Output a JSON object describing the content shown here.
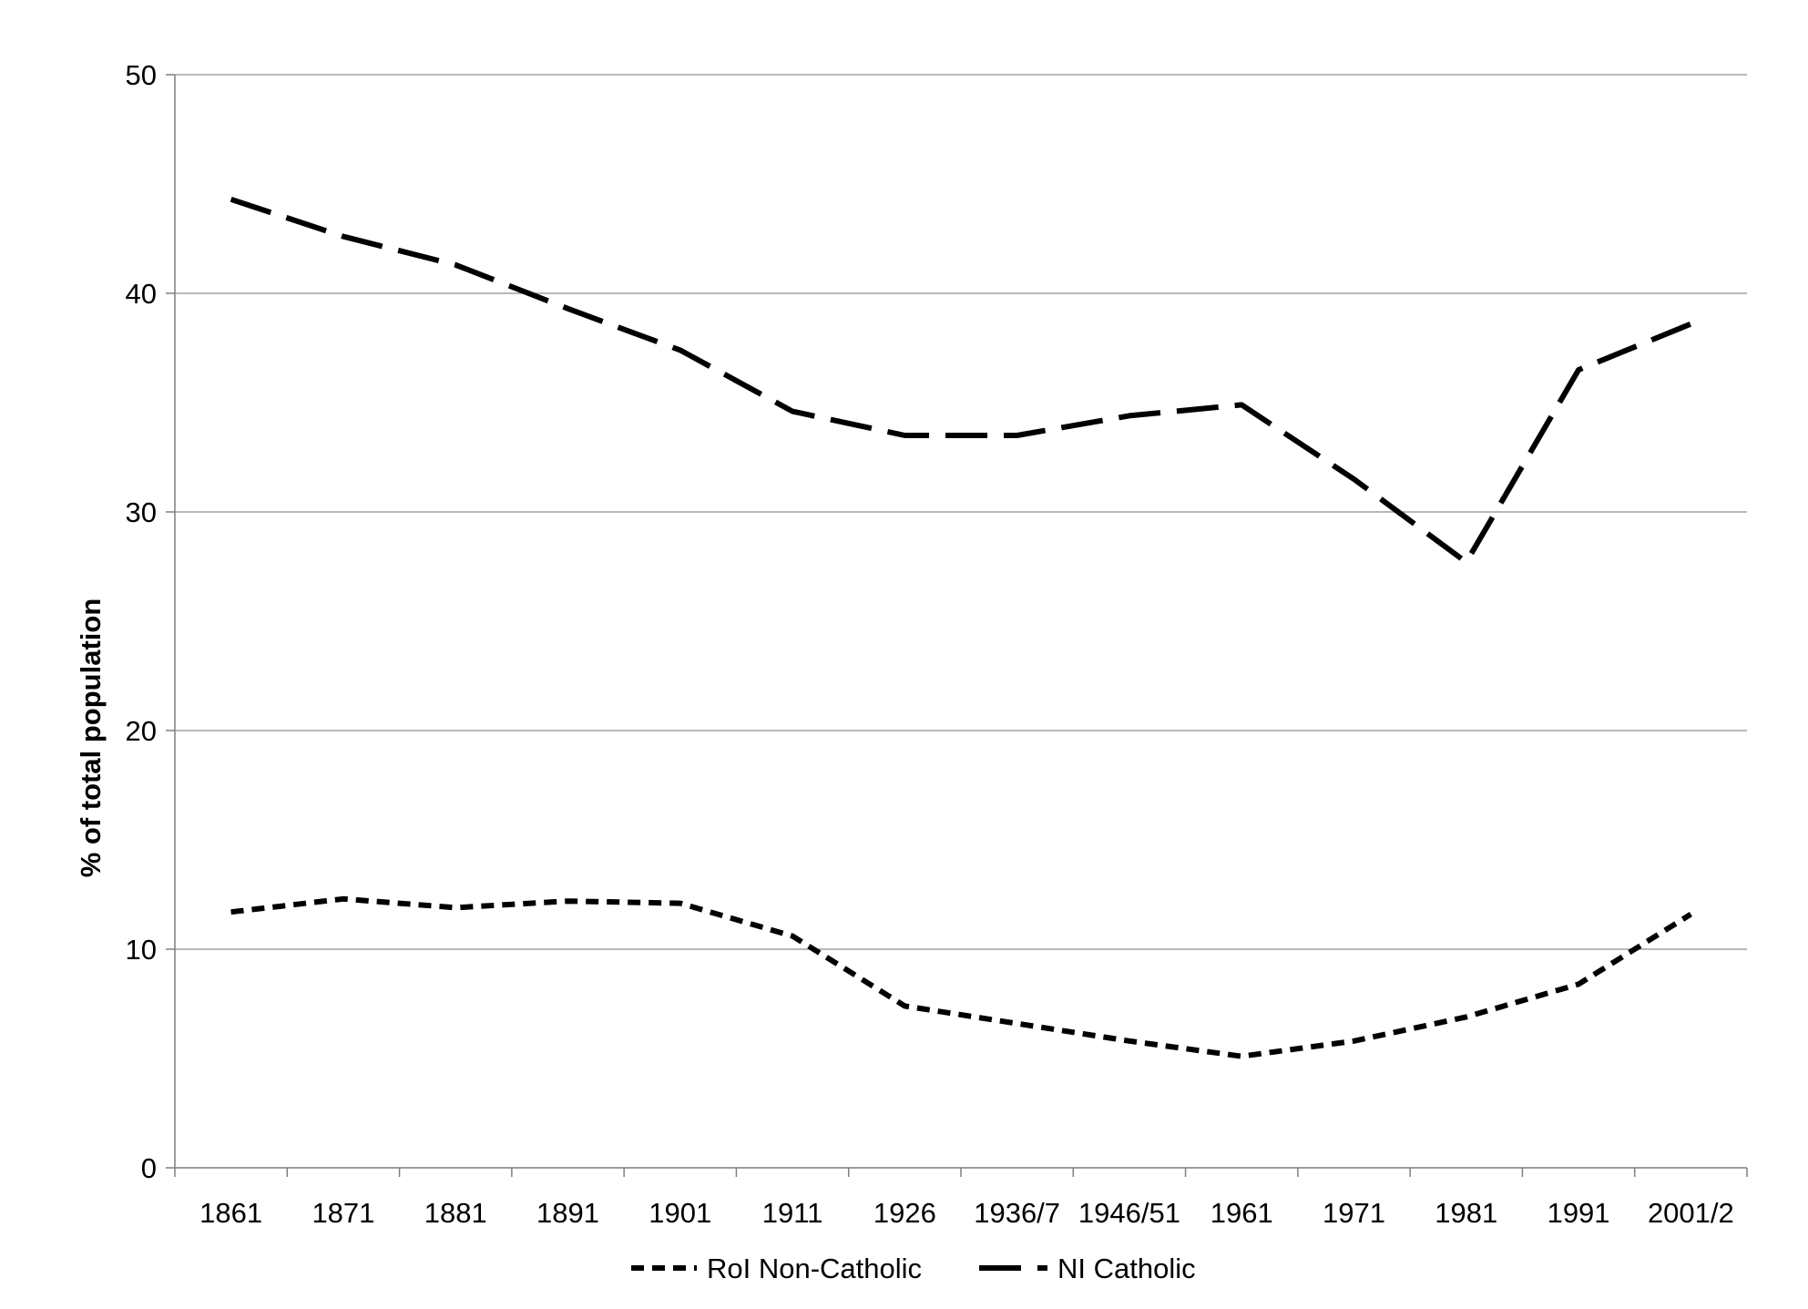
{
  "chart_data": {
    "type": "line",
    "title": "",
    "xlabel": "",
    "ylabel": "% of total population",
    "ylim": [
      0,
      50
    ],
    "yticks": [
      0,
      10,
      20,
      30,
      40,
      50
    ],
    "categories": [
      "1861",
      "1871",
      "1881",
      "1891",
      "1901",
      "1911",
      "1926",
      "1936/7",
      "1946/51",
      "1961",
      "1971",
      "1981",
      "1991",
      "2001/2"
    ],
    "series": [
      {
        "name": "RoI Non-Catholic",
        "style": "short-dash",
        "color": "#000000",
        "values": [
          11.7,
          12.3,
          11.9,
          12.2,
          12.1,
          10.6,
          7.4,
          6.6,
          5.8,
          5.1,
          5.8,
          6.9,
          8.4,
          11.6
        ]
      },
      {
        "name": "NI Catholic",
        "style": "long-dash",
        "color": "#000000",
        "values": [
          44.3,
          42.6,
          41.3,
          39.3,
          37.4,
          34.6,
          33.5,
          33.5,
          34.4,
          34.9,
          31.5,
          27.7,
          36.5,
          38.6
        ]
      }
    ],
    "grid": true,
    "gridline_color": "#a0a0a0",
    "legend_position": "bottom"
  }
}
